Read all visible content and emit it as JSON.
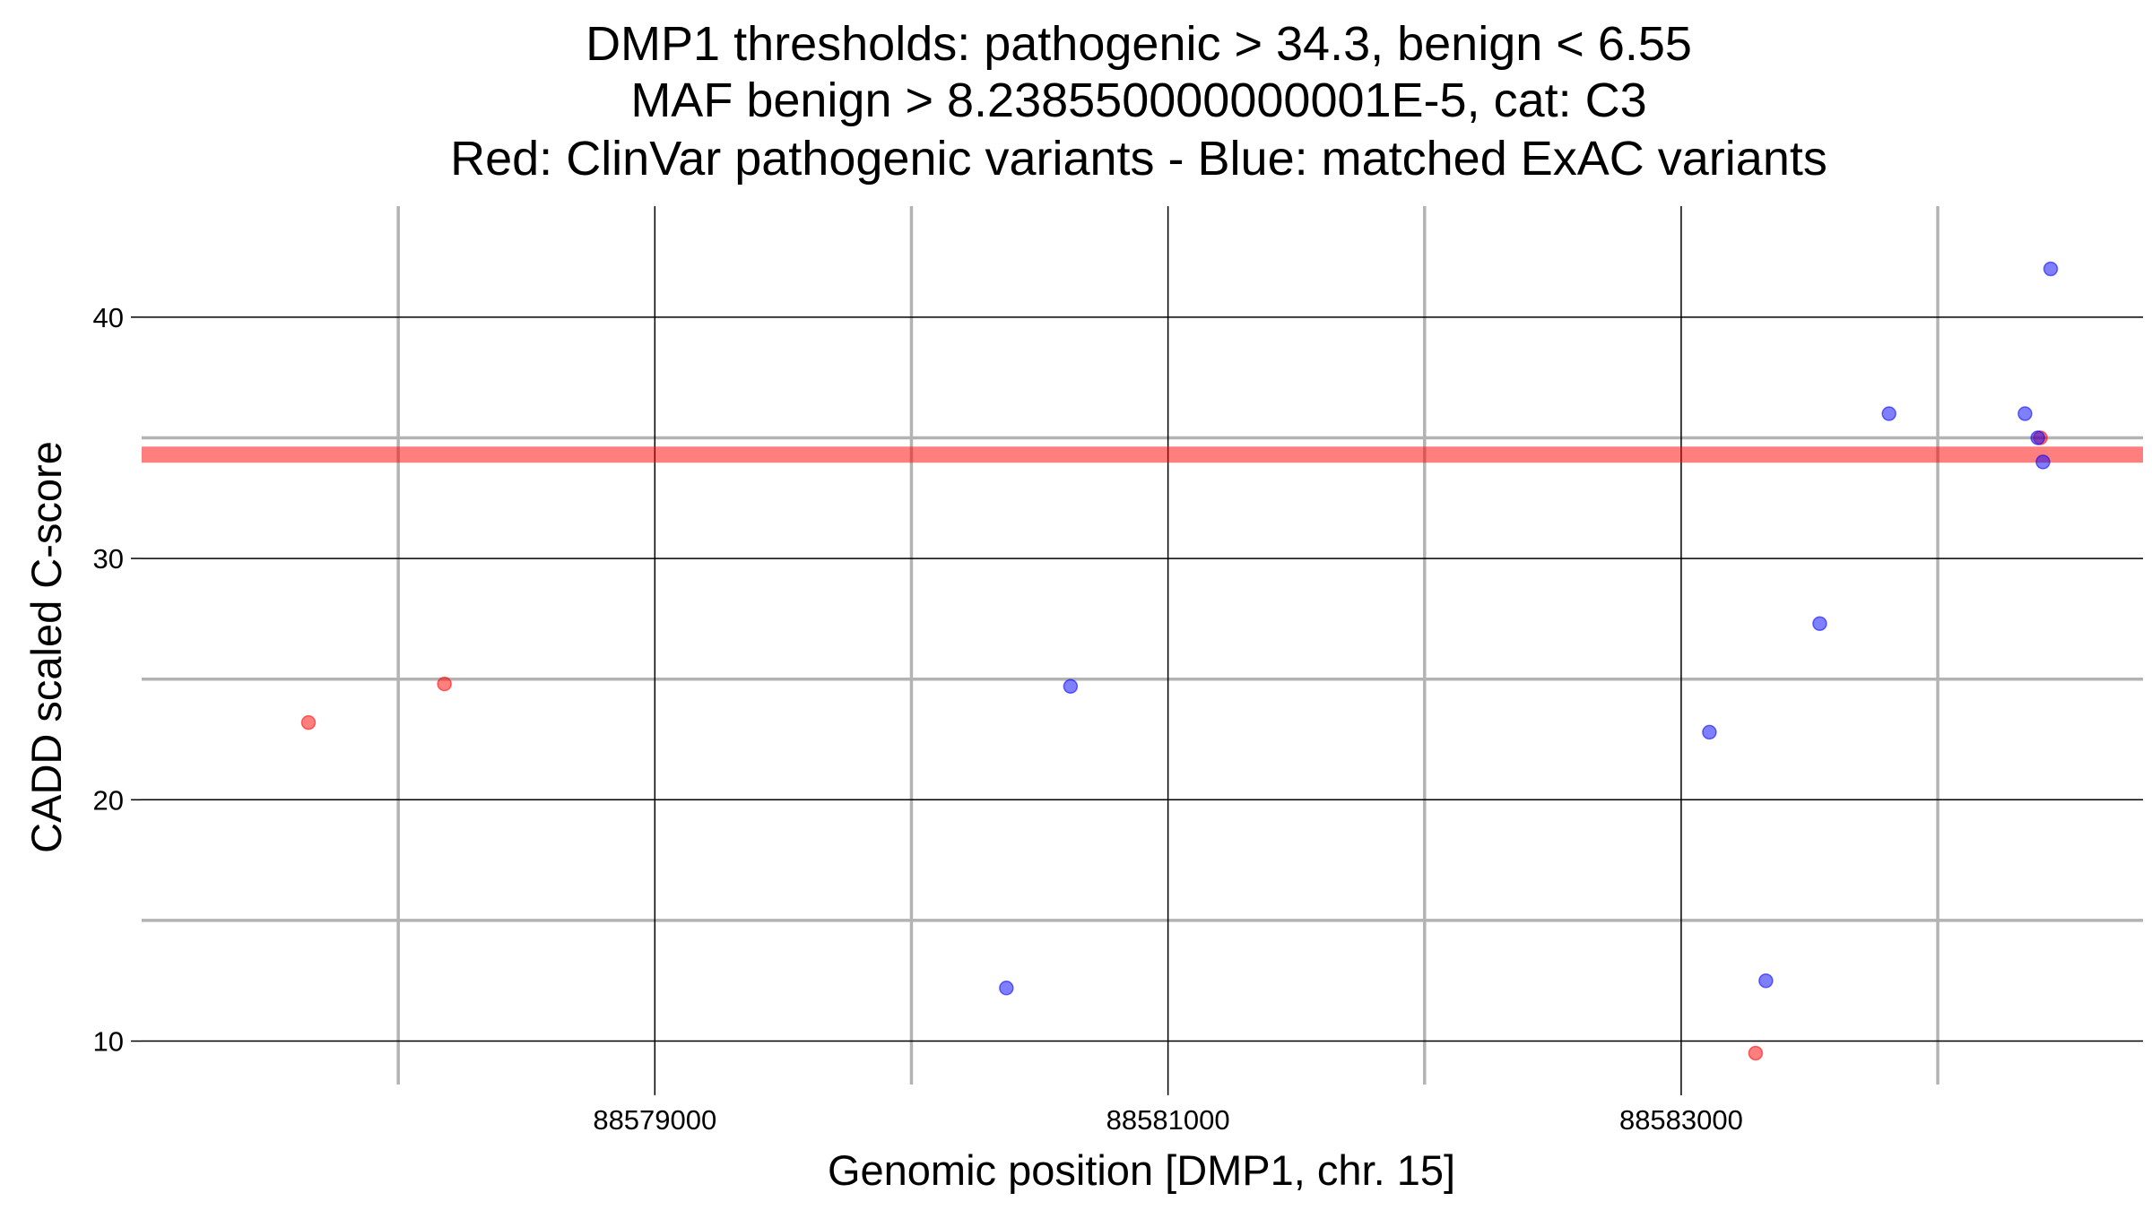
{
  "chart_data": {
    "type": "scatter",
    "title_lines": [
      "DMP1 thresholds: pathogenic > 34.3, benign < 6.55",
      "MAF benign > 8.238550000000001E-5, cat: C3",
      "Red: ClinVar pathogenic variants - Blue: matched ExAC variants"
    ],
    "xlabel": "Genomic position [DMP1, chr. 15]",
    "ylabel": "CADD scaled C-score",
    "xlim": [
      88577000,
      88584800
    ],
    "ylim": [
      8.2,
      44.6
    ],
    "x_ticks": [
      88579000,
      88581000,
      88583000
    ],
    "x_tick_labels": [
      "88579000",
      "88581000",
      "88583000"
    ],
    "x_minor_ticks": [
      88578000,
      88580000,
      88582000,
      88584000
    ],
    "y_ticks": [
      10,
      20,
      30,
      40
    ],
    "y_tick_labels": [
      "10",
      "20",
      "30",
      "40"
    ],
    "y_minor_ticks": [
      15,
      25,
      35
    ],
    "grid": true,
    "threshold_line": {
      "y": 34.3,
      "color": "#ff0000"
    },
    "series": [
      {
        "color": "#ff0000",
        "points": [
          {
            "x": 88577650,
            "y": 23.2
          },
          {
            "x": 88578180,
            "y": 24.8
          },
          {
            "x": 88583290,
            "y": 9.5
          },
          {
            "x": 88584400,
            "y": 35.0
          }
        ]
      },
      {
        "color": "#0000ff",
        "points": [
          {
            "x": 88580370,
            "y": 12.2
          },
          {
            "x": 88580620,
            "y": 24.7
          },
          {
            "x": 88583110,
            "y": 22.8
          },
          {
            "x": 88583330,
            "y": 12.5
          },
          {
            "x": 88583540,
            "y": 27.3
          },
          {
            "x": 88583810,
            "y": 36.0
          },
          {
            "x": 88584340,
            "y": 36.0
          },
          {
            "x": 88584390,
            "y": 35.0
          },
          {
            "x": 88584410,
            "y": 34.0
          },
          {
            "x": 88584440,
            "y": 42.0
          }
        ]
      }
    ]
  }
}
